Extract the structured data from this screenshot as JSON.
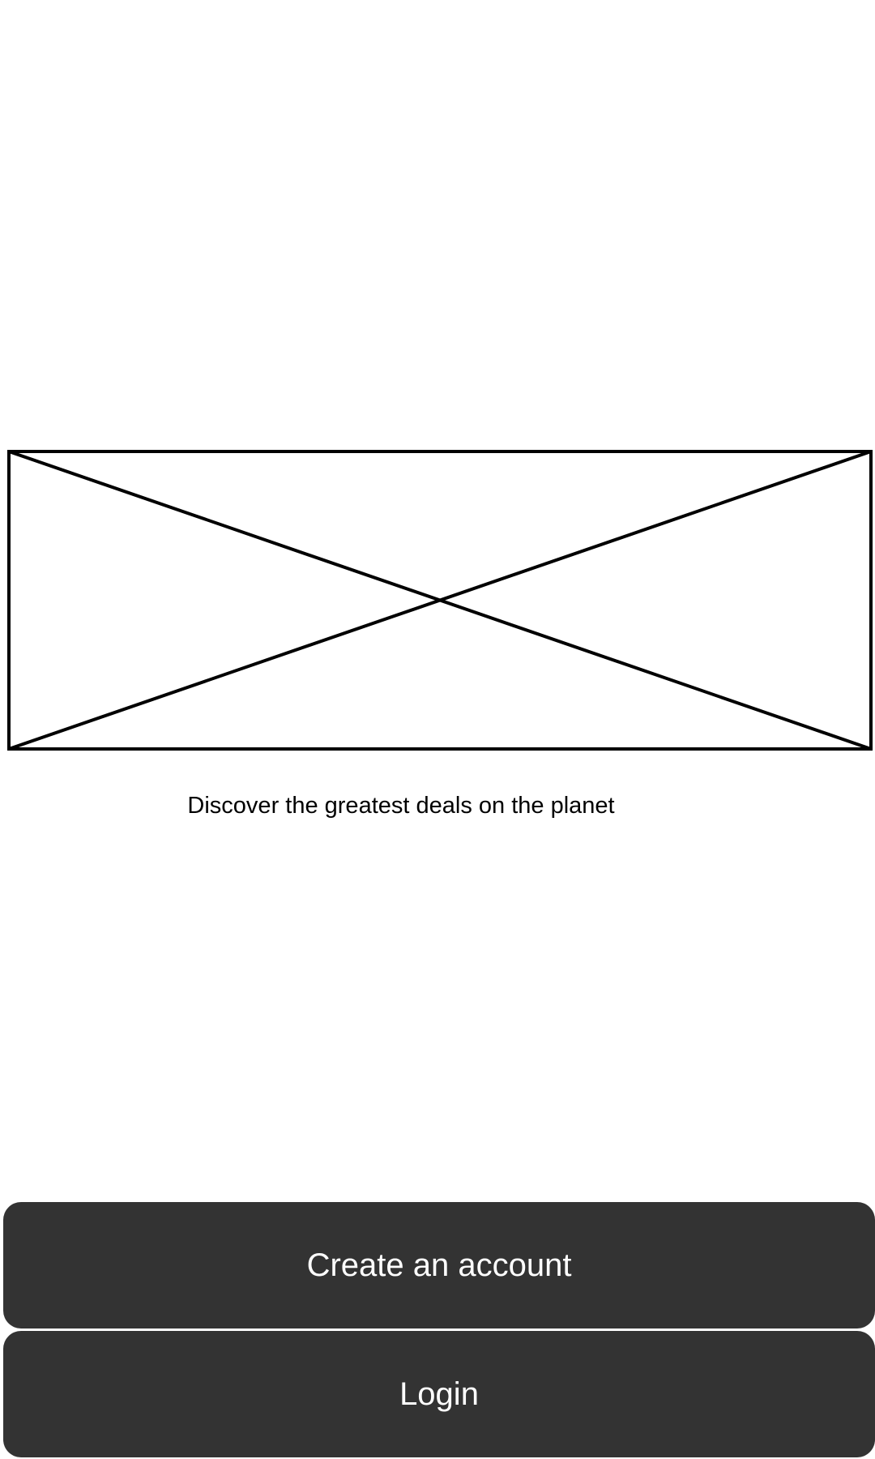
{
  "hero": {
    "icon": "image-placeholder-icon"
  },
  "tagline": "Discover the greatest deals on the planet",
  "actions": {
    "create_account_label": "Create an account",
    "login_label": "Login"
  },
  "colors": {
    "background": "#ffffff",
    "button_background": "#333333",
    "button_text": "#ffffff",
    "placeholder_stroke": "#000000",
    "text": "#000000"
  }
}
